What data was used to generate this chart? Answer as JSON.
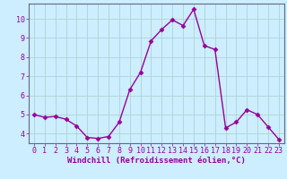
{
  "x": [
    0,
    1,
    2,
    3,
    4,
    5,
    6,
    7,
    8,
    9,
    10,
    11,
    12,
    13,
    14,
    15,
    16,
    17,
    18,
    19,
    20,
    21,
    22,
    23
  ],
  "y": [
    5.0,
    4.85,
    4.9,
    4.75,
    4.4,
    3.8,
    3.75,
    3.85,
    4.6,
    6.3,
    7.2,
    8.85,
    9.45,
    9.95,
    9.65,
    10.5,
    8.6,
    8.4,
    4.3,
    4.6,
    5.25,
    5.0,
    4.35,
    3.7
  ],
  "line_color": "#990099",
  "marker": "D",
  "marker_size": 2.5,
  "linewidth": 1.0,
  "bg_color": "#cceeff",
  "grid_color": "#aacccc",
  "xlabel": "Windchill (Refroidissement éolien,°C)",
  "xlabel_color": "#990099",
  "xlabel_fontsize": 6.5,
  "tick_color": "#990099",
  "tick_fontsize": 6.0,
  "ylim": [
    3.5,
    10.8
  ],
  "yticks": [
    4,
    5,
    6,
    7,
    8,
    9,
    10
  ],
  "xticks": [
    0,
    1,
    2,
    3,
    4,
    5,
    6,
    7,
    8,
    9,
    10,
    11,
    12,
    13,
    14,
    15,
    16,
    17,
    18,
    19,
    20,
    21,
    22,
    23
  ]
}
